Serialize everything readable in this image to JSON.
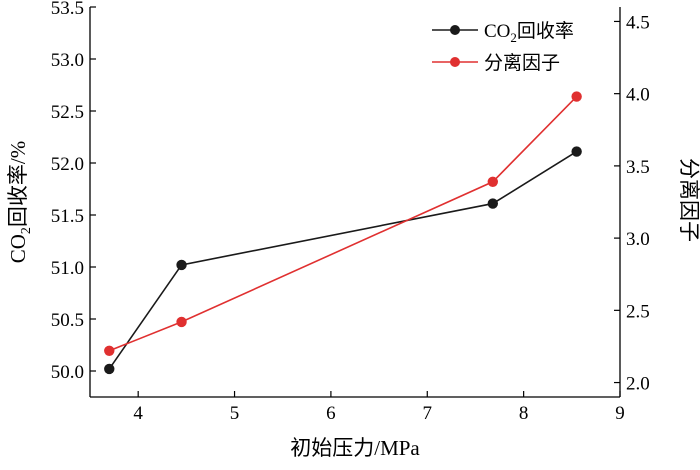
{
  "chart_data": {
    "type": "line",
    "xlabel": "初始压力/MPa",
    "ylabel_left_prefix": "CO",
    "ylabel_left_sub": "2",
    "ylabel_left_suffix": "回收率/%",
    "ylabel_right": "分离因子",
    "xlim": [
      3.5,
      9
    ],
    "ylim_left": [
      49.75,
      53.5
    ],
    "ylim_right": [
      1.9,
      4.6
    ],
    "x_ticks": [
      4,
      5,
      6,
      7,
      8,
      9
    ],
    "y_left_ticks": [
      50.0,
      50.5,
      51.0,
      51.5,
      52.0,
      52.5,
      53.0,
      53.5
    ],
    "y_right_ticks": [
      2.0,
      2.5,
      3.0,
      3.5,
      4.0,
      4.5
    ],
    "grid": false,
    "legend_placement": "top-right",
    "series": [
      {
        "name": "CO2回收率",
        "name_prefix": "CO",
        "name_sub": "2",
        "name_suffix": "回收率",
        "axis": "left",
        "color": "#1a1a1a",
        "x": [
          3.7,
          4.45,
          7.68,
          8.55
        ],
        "values": [
          50.02,
          51.02,
          51.61,
          52.11
        ]
      },
      {
        "name": "分离因子",
        "axis": "right",
        "color": "#e03030",
        "x": [
          3.7,
          4.45,
          7.68,
          8.55
        ],
        "values": [
          2.22,
          2.42,
          3.39,
          3.98
        ]
      }
    ]
  }
}
